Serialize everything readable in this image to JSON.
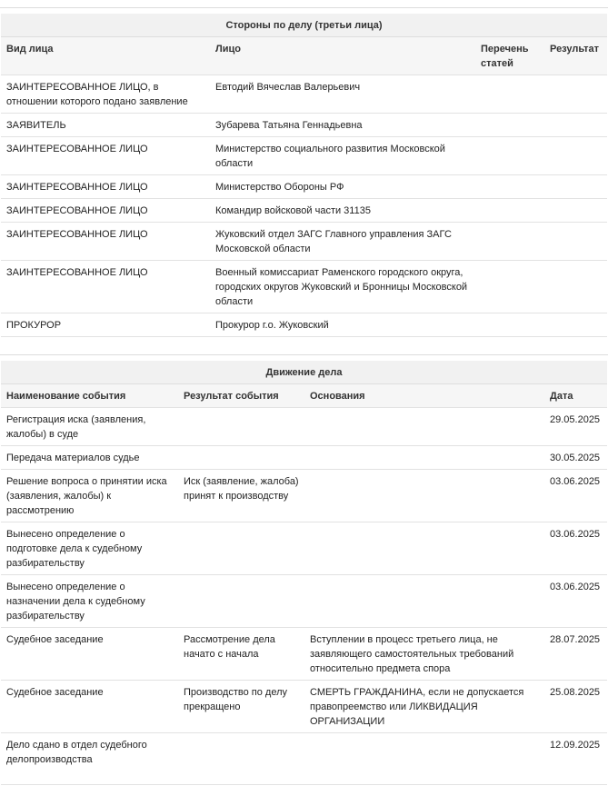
{
  "parties": {
    "title": "Стороны по делу (третьи лица)",
    "columns": [
      "Вид лица",
      "Лицо",
      "Перечень статей",
      "Результат"
    ],
    "rows": [
      [
        "ЗАИНТЕРЕСОВАННОЕ ЛИЦО, в отношении которого подано заявление",
        "Евтодий Вячеслав Валерьевич",
        "",
        ""
      ],
      [
        "ЗАЯВИТЕЛЬ",
        "Зубарева Татьяна Геннадьевна",
        "",
        ""
      ],
      [
        "ЗАИНТЕРЕСОВАННОЕ ЛИЦО",
        "Министерство социального развития Московской области",
        "",
        ""
      ],
      [
        "ЗАИНТЕРЕСОВАННОЕ ЛИЦО",
        "Министерство Обороны РФ",
        "",
        ""
      ],
      [
        "ЗАИНТЕРЕСОВАННОЕ ЛИЦО",
        "Командир войсковой части 31135",
        "",
        ""
      ],
      [
        "ЗАИНТЕРЕСОВАННОЕ ЛИЦО",
        "Жуковский отдел ЗАГС Главного управления ЗАГС Московской области",
        "",
        ""
      ],
      [
        "ЗАИНТЕРЕСОВАННОЕ ЛИЦО",
        "Военный комиссариат Раменского городского округа, городских округов Жуковский и Бронницы Московской области",
        "",
        ""
      ],
      [
        "ПРОКУРОР",
        "Прокурор г.о. Жуковский",
        "",
        ""
      ]
    ]
  },
  "movement": {
    "title": "Движение дела",
    "columns": [
      "Наименование события",
      "Результат события",
      "Основания",
      "Дата"
    ],
    "rows": [
      [
        "Регистрация иска (заявления, жалобы) в суде",
        "",
        "",
        "29.05.2025"
      ],
      [
        "Передача материалов судье",
        "",
        "",
        "30.05.2025"
      ],
      [
        "Решение вопроса о принятии иска (заявления, жалобы) к рассмотрению",
        "Иск (заявление, жалоба) принят к производству",
        "",
        "03.06.2025"
      ],
      [
        "Вынесено определение о подготовке дела к судебному разбирательству",
        "",
        "",
        "03.06.2025"
      ],
      [
        "Вынесено определение о назначении дела к судебному разбирательству",
        "",
        "",
        "03.06.2025"
      ],
      [
        "Судебное заседание",
        "Рассмотрение дела начато с начала",
        "Вступлении в процесс третьего лица, не заявляющего самостоятельных требований относительно предмета спора",
        "28.07.2025"
      ],
      [
        "Судебное заседание",
        "Производство по делу прекращено",
        "СМЕРТЬ ГРАЖДАНИНА, если не допускается правопреемство или ЛИКВИДАЦИЯ ОРГАНИЗАЦИИ",
        "25.08.2025"
      ],
      [
        "Дело сдано в отдел судебного делопроизводства",
        "",
        "",
        "12.09.2025"
      ]
    ]
  }
}
